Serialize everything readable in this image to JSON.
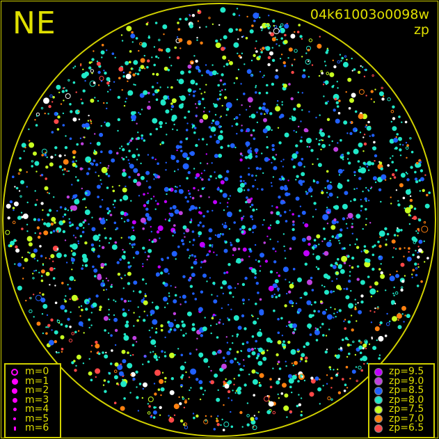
{
  "header": {
    "hemisphere": "NE",
    "frame_id": "04k61003o0098w",
    "quantity": "zp"
  },
  "legend_magnitude": [
    {
      "label": "m=0",
      "size": 10,
      "hollow": true
    },
    {
      "label": "m=1",
      "size": 9
    },
    {
      "label": "m=2",
      "size": 8
    },
    {
      "label": "m=3",
      "size": 7
    },
    {
      "label": "m=4",
      "size": 5
    },
    {
      "label": "m=5",
      "size": 4
    },
    {
      "label": "m=6",
      "size": 3
    }
  ],
  "legend_magnitude_color": "#ff00ff",
  "legend_zp": [
    {
      "label": "zp=9.5",
      "color": "#c000ff"
    },
    {
      "label": "zp=9.0",
      "color": "#c040e0"
    },
    {
      "label": "zp=8.5",
      "color": "#2060ff"
    },
    {
      "label": "zp=8.0",
      "color": "#20e8c8"
    },
    {
      "label": "zp=7.5",
      "color": "#c8ff20"
    },
    {
      "label": "zp=7.0",
      "color": "#ff8010"
    },
    {
      "label": "zp=6.5",
      "color": "#ff4848"
    }
  ],
  "colors": {
    "frame": "#d0d000",
    "text": "#e0e000",
    "background": "#000000"
  }
}
